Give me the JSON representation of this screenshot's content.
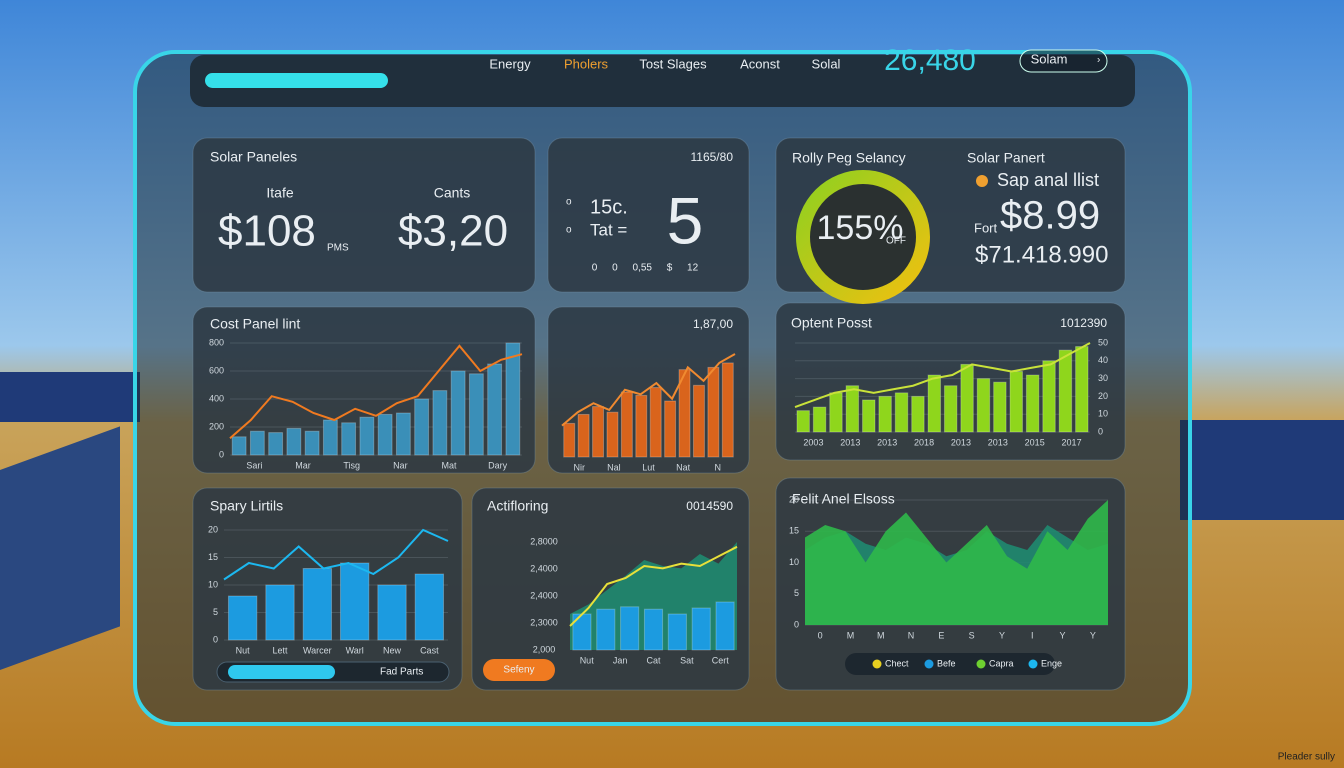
{
  "nav": {
    "tabs": [
      "Energy",
      "Pholers",
      "Tost Slages",
      "Aconst",
      "Solal"
    ],
    "active": 1,
    "counter": "26,480",
    "dropdown": "Solam"
  },
  "cards": {
    "solar": {
      "title": "Solar Paneles",
      "label_left": "Itafe",
      "label_right": "Cants",
      "value_left": "$108",
      "unit_left": "PMS",
      "value_right": "$3,20"
    },
    "count": {
      "header": "1165/80",
      "side": [
        "o",
        "o"
      ],
      "line1": "15c.",
      "line2": "Tat =",
      "big": "5",
      "footer": "0 0 0,55 $ 12"
    },
    "gauge": {
      "title": "Rolly Peg Selancy",
      "percent": "155%",
      "percent_note": "OFF",
      "right_title": "Solar Panert",
      "bullet": "Sap anal llist",
      "price_label": "Fort",
      "price": "$8.99",
      "total": "$71.418.990"
    }
  },
  "charts": {
    "cost": {
      "title": "Cost Panel lint",
      "ylim": [
        0,
        800
      ],
      "yticks": [
        0,
        200,
        400,
        600,
        800
      ],
      "x_labels": [
        "Sari",
        "Mar",
        "Tisg",
        "Nar",
        "Mat",
        "Dary"
      ],
      "bars": {
        "color": "#3a8fb8",
        "values": [
          130,
          170,
          160,
          190,
          170,
          250,
          230,
          270,
          290,
          300,
          400,
          460,
          600,
          580,
          650,
          800
        ]
      },
      "line": {
        "color": "#f07a20",
        "values": [
          120,
          250,
          420,
          380,
          300,
          250,
          330,
          280,
          370,
          420,
          600,
          780,
          600,
          680,
          720
        ]
      }
    },
    "orange": {
      "header": "1,87,00",
      "ylim": [
        0,
        100
      ],
      "x_labels": [
        "Nir",
        "Nal",
        "Lut",
        "Nat",
        "N"
      ],
      "bars": {
        "color": "#d9641c",
        "values": [
          30,
          38,
          45,
          40,
          58,
          55,
          62,
          50,
          78,
          64,
          80,
          84
        ]
      },
      "line": {
        "color": "#f08a30",
        "values": [
          28,
          40,
          48,
          42,
          60,
          56,
          66,
          52,
          80,
          68,
          84,
          92
        ]
      }
    },
    "green": {
      "title": "Optent Posst",
      "header": "1012390",
      "ylim": [
        0,
        50
      ],
      "yticks": [
        0,
        10,
        20,
        30,
        40,
        50
      ],
      "tick_side": "right",
      "x_labels": [
        "2003",
        "2013",
        "2013",
        "2018",
        "2013",
        "2013",
        "2015",
        "2017"
      ],
      "bars": {
        "color": "#8fd61c",
        "values": [
          12,
          14,
          22,
          26,
          18,
          20,
          22,
          20,
          32,
          26,
          38,
          30,
          28,
          34,
          32,
          40,
          46,
          48
        ]
      },
      "line": {
        "color": "#c9e23a",
        "values": [
          14,
          18,
          22,
          24,
          22,
          24,
          26,
          30,
          32,
          38,
          36,
          34,
          36,
          38,
          44,
          50
        ]
      }
    },
    "spary": {
      "title": "Spary Lirtils",
      "ylim": [
        0,
        20
      ],
      "yticks": [
        0,
        5,
        10,
        15,
        20
      ],
      "x_labels": [
        "Nut",
        "Lett",
        "Warcer",
        "Warl",
        "New",
        "Cast"
      ],
      "bars": {
        "color": "#1c9be0",
        "values": [
          8,
          10,
          13,
          14,
          10,
          12
        ]
      },
      "line": {
        "color": "#1cb8f0",
        "values": [
          11,
          14,
          13,
          17,
          13,
          14,
          12,
          15,
          20,
          18
        ]
      },
      "progress_label": "Fad Parts"
    },
    "actif": {
      "title": "Actifloring",
      "header": "0014590",
      "ylim": [
        0,
        100
      ],
      "y_axis_text": [
        "2,8000",
        "2,4000",
        "2,4000",
        "2,3000",
        "2,000"
      ],
      "x_labels": [
        "Nut",
        "Jan",
        "Cat",
        "Sat",
        "Cert"
      ],
      "areas": [
        {
          "color": "#1f8a70",
          "values": [
            30,
            38,
            50,
            62,
            75,
            70,
            68,
            80,
            72,
            90
          ]
        }
      ],
      "bars": {
        "color": "#1c9be0",
        "values": [
          30,
          34,
          36,
          34,
          30,
          35,
          40
        ]
      },
      "line": {
        "color": "#e8e03a",
        "values": [
          20,
          35,
          55,
          60,
          70,
          68,
          72,
          70,
          78,
          86
        ]
      },
      "button": "Sefeny"
    },
    "felit": {
      "title": "Felit Anel Elsoss",
      "ylim": [
        0,
        20
      ],
      "yticks": [
        0,
        5,
        10,
        15,
        20
      ],
      "x_labels": [
        "0",
        "M",
        "M",
        "N",
        "E",
        "S",
        "Y",
        "I",
        "Y",
        "Y"
      ],
      "areas": [
        {
          "color": "#1f8a70",
          "values": [
            12,
            14,
            15,
            13,
            12,
            14,
            13,
            11,
            12,
            15,
            13,
            12,
            16,
            14,
            12,
            13
          ]
        },
        {
          "color": "#2fb84a",
          "values": [
            14,
            16,
            15,
            10,
            15,
            18,
            14,
            10,
            13,
            16,
            11,
            9,
            15,
            12,
            17,
            20
          ]
        }
      ],
      "legend": [
        {
          "name": "Chect",
          "color": "#e8d020"
        },
        {
          "name": "Befe",
          "color": "#1c9be0"
        },
        {
          "name": "Capra",
          "color": "#6ed030"
        },
        {
          "name": "Enge",
          "color": "#1cb8f0"
        }
      ]
    }
  },
  "footer": "Pleader sully"
}
